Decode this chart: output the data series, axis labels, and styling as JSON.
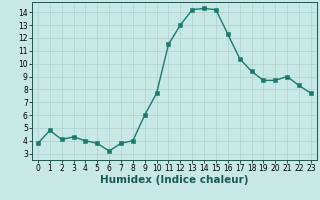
{
  "x": [
    0,
    1,
    2,
    3,
    4,
    5,
    6,
    7,
    8,
    9,
    10,
    11,
    12,
    13,
    14,
    15,
    16,
    17,
    18,
    19,
    20,
    21,
    22,
    23
  ],
  "y": [
    3.8,
    4.8,
    4.1,
    4.3,
    4.0,
    3.8,
    3.2,
    3.8,
    4.0,
    6.0,
    7.7,
    11.5,
    13.0,
    14.2,
    14.3,
    14.2,
    12.3,
    10.4,
    9.4,
    8.7,
    8.7,
    9.0,
    8.3,
    7.7
  ],
  "line_color": "#1a7a6e",
  "marker_color": "#1a7a6e",
  "bg_color": "#c8e8e5",
  "grid_color": "#b0d0cc",
  "xlabel": "Humidex (Indice chaleur)",
  "ylabel": "",
  "xlim": [
    -0.5,
    23.5
  ],
  "ylim": [
    2.5,
    14.8
  ],
  "yticks": [
    3,
    4,
    5,
    6,
    7,
    8,
    9,
    10,
    11,
    12,
    13,
    14
  ],
  "xticks": [
    0,
    1,
    2,
    3,
    4,
    5,
    6,
    7,
    8,
    9,
    10,
    11,
    12,
    13,
    14,
    15,
    16,
    17,
    18,
    19,
    20,
    21,
    22,
    23
  ],
  "tick_fontsize": 5.5,
  "xlabel_fontsize": 7.5,
  "line_width": 1.0,
  "marker_size": 2.5
}
